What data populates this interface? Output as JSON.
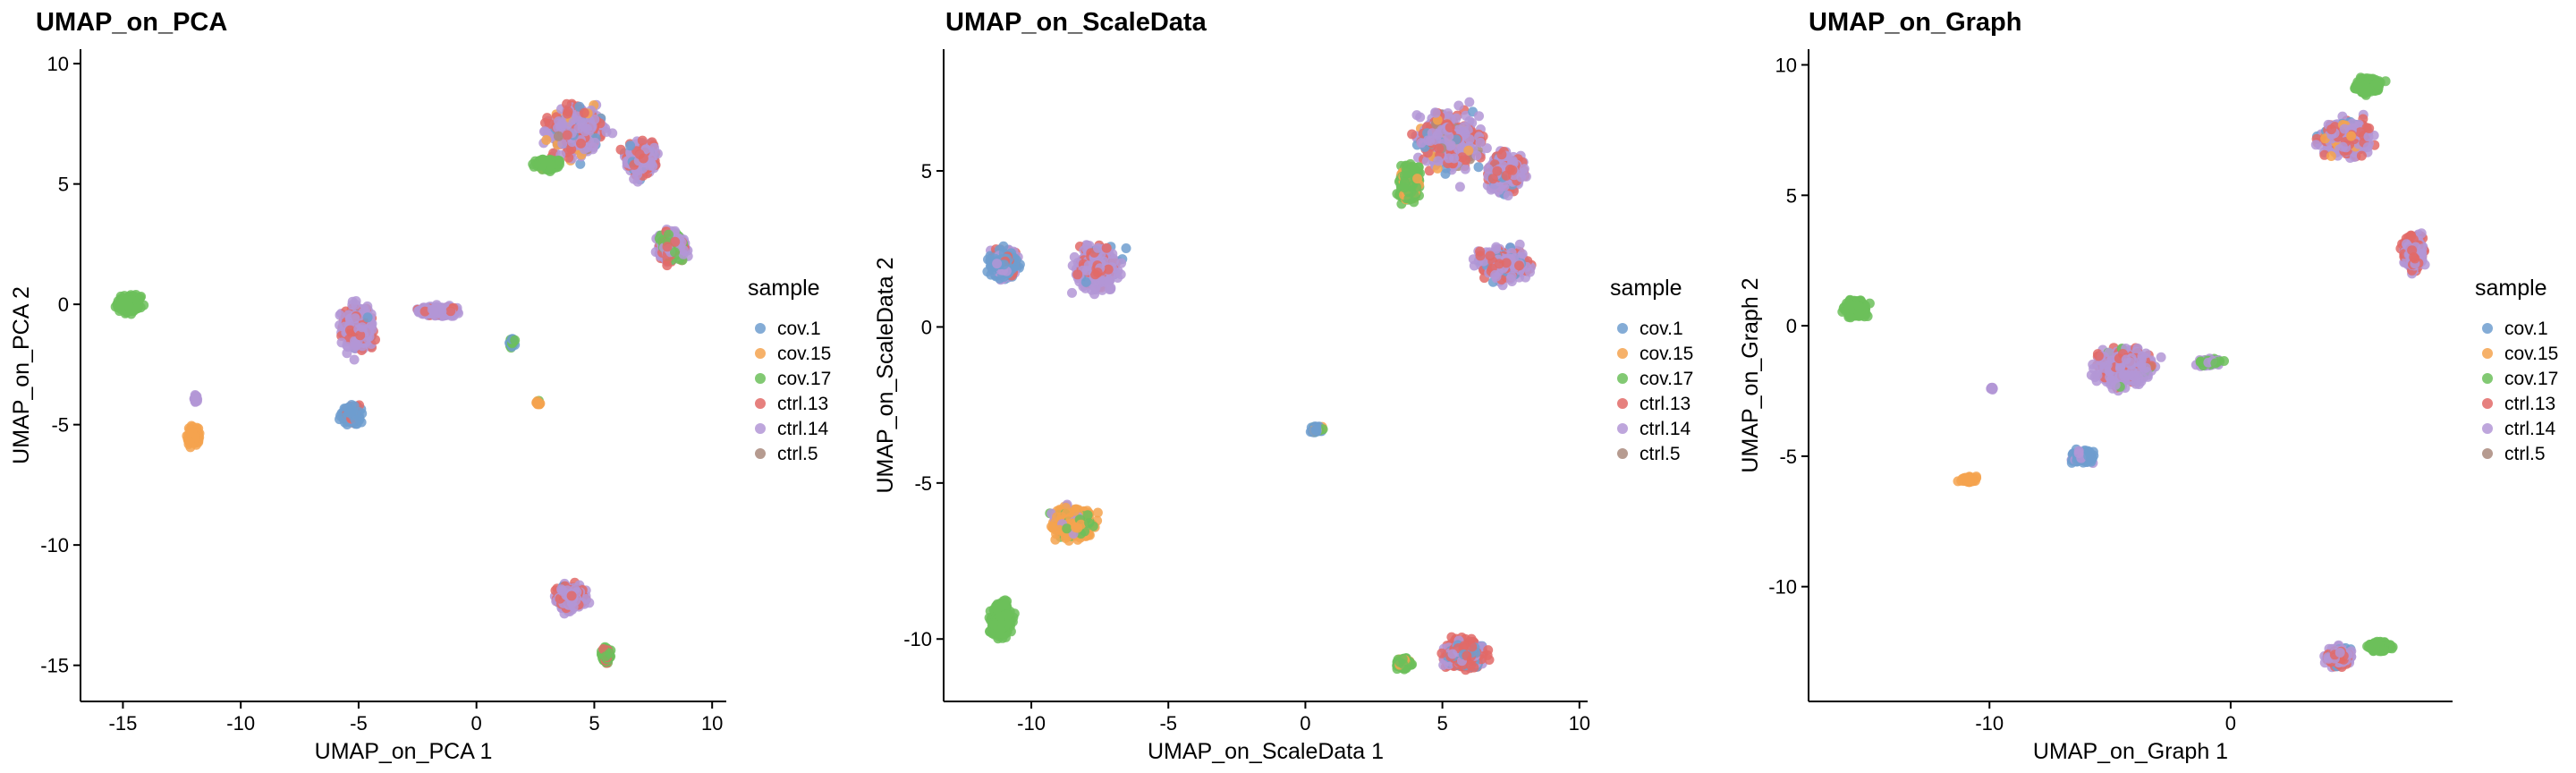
{
  "colors": {
    "cov.1": "#6f9ecf",
    "cov.15": "#f4a34f",
    "cov.17": "#6cc05a",
    "ctrl.13": "#e26a67",
    "ctrl.14": "#b396d6",
    "ctrl.5": "#a98a7d"
  },
  "chart_data": [
    {
      "type": "scatter",
      "title": "UMAP_on_PCA",
      "xlabel": "UMAP_on_PCA 1",
      "ylabel": "UMAP_on_PCA 2",
      "xlim": [
        -16.8,
        10.6
      ],
      "ylim": [
        -16.5,
        10.6
      ],
      "xticks": [
        -15,
        -10,
        -5,
        0,
        5,
        10
      ],
      "yticks": [
        -15,
        -10,
        -5,
        0,
        5,
        10
      ],
      "legend_title": "sample",
      "legend_position": "right",
      "series": [
        "cov.1",
        "cov.15",
        "cov.17",
        "ctrl.13",
        "ctrl.14",
        "ctrl.5"
      ],
      "clusters": [
        {
          "x": 4.2,
          "y": 7.2,
          "rx": 2.2,
          "ry": 2.0,
          "sample": "ctrl.14",
          "mix": {
            "ctrl.14": 0.55,
            "ctrl.13": 0.25,
            "cov.15": 0.08,
            "cov.1": 0.07,
            "ctrl.5": 0.05
          }
        },
        {
          "x": 7.0,
          "y": 6.0,
          "rx": 1.2,
          "ry": 1.3,
          "sample": "ctrl.14",
          "mix": {
            "ctrl.14": 0.6,
            "ctrl.13": 0.3,
            "cov.1": 0.1
          }
        },
        {
          "x": 8.3,
          "y": 2.4,
          "rx": 1.1,
          "ry": 1.2,
          "sample": "ctrl.14",
          "mix": {
            "ctrl.14": 0.55,
            "ctrl.13": 0.35,
            "cov.17": 0.1
          }
        },
        {
          "x": 3.0,
          "y": 5.8,
          "rx": 0.9,
          "ry": 0.45,
          "sample": "cov.17",
          "mix": {
            "cov.17": 0.9,
            "cov.15": 0.1
          }
        },
        {
          "x": -14.7,
          "y": 0.0,
          "rx": 1.0,
          "ry": 0.65,
          "sample": "cov.17",
          "mix": {
            "cov.17": 1.0
          }
        },
        {
          "x": -12.0,
          "y": -5.5,
          "rx": 0.45,
          "ry": 0.75,
          "sample": "cov.15",
          "mix": {
            "cov.15": 1.0
          }
        },
        {
          "x": -11.9,
          "y": -3.9,
          "rx": 0.15,
          "ry": 0.35,
          "sample": "ctrl.14",
          "mix": {
            "ctrl.14": 1.0
          }
        },
        {
          "x": -5.0,
          "y": -1.0,
          "rx": 1.3,
          "ry": 1.8,
          "sample": "ctrl.14",
          "mix": {
            "ctrl.14": 0.7,
            "ctrl.13": 0.25,
            "cov.1": 0.05
          }
        },
        {
          "x": -1.6,
          "y": -0.3,
          "rx": 1.7,
          "ry": 0.4,
          "sample": "ctrl.14",
          "mix": {
            "ctrl.14": 0.85,
            "ctrl.13": 0.15
          }
        },
        {
          "x": -5.3,
          "y": -4.6,
          "rx": 0.75,
          "ry": 0.7,
          "sample": "cov.1",
          "mix": {
            "cov.1": 0.85,
            "ctrl.13": 0.1,
            "ctrl.14": 0.05
          }
        },
        {
          "x": 1.5,
          "y": -1.6,
          "rx": 0.25,
          "ry": 0.4,
          "sample": "cov.1",
          "mix": {
            "cov.1": 0.5,
            "cov.17": 0.5
          }
        },
        {
          "x": 2.6,
          "y": -4.1,
          "rx": 0.2,
          "ry": 0.25,
          "sample": "cov.15",
          "mix": {
            "cov.15": 0.6,
            "cov.17": 0.4
          }
        },
        {
          "x": 4.0,
          "y": -12.2,
          "rx": 1.2,
          "ry": 0.95,
          "sample": "ctrl.14",
          "mix": {
            "ctrl.14": 0.6,
            "ctrl.13": 0.35,
            "cov.1": 0.05
          }
        },
        {
          "x": 5.5,
          "y": -14.6,
          "rx": 0.4,
          "ry": 0.6,
          "sample": "cov.17",
          "mix": {
            "cov.17": 0.8,
            "ctrl.13": 0.2
          }
        }
      ]
    },
    {
      "type": "scatter",
      "title": "UMAP_on_ScaleData",
      "xlabel": "UMAP_on_ScaleData 1",
      "ylabel": "UMAP_on_ScaleData 2",
      "xlim": [
        -13.2,
        10.3
      ],
      "ylim": [
        -12.0,
        8.9
      ],
      "xticks": [
        -10,
        -5,
        0,
        5,
        10
      ],
      "yticks": [
        -10,
        -5,
        0,
        5
      ],
      "legend_title": "sample",
      "legend_position": "right",
      "series": [
        "cov.1",
        "cov.15",
        "cov.17",
        "ctrl.13",
        "ctrl.14",
        "ctrl.5"
      ],
      "clusters": [
        {
          "x": 5.2,
          "y": 5.9,
          "rx": 2.3,
          "ry": 1.8,
          "sample": "ctrl.14",
          "mix": {
            "ctrl.14": 0.55,
            "ctrl.13": 0.25,
            "cov.15": 0.08,
            "cov.1": 0.07,
            "ctrl.5": 0.05
          }
        },
        {
          "x": 7.3,
          "y": 4.9,
          "rx": 1.2,
          "ry": 1.2,
          "sample": "ctrl.14",
          "mix": {
            "ctrl.14": 0.6,
            "ctrl.13": 0.3,
            "cov.1": 0.1
          }
        },
        {
          "x": 7.2,
          "y": 2.0,
          "rx": 1.8,
          "ry": 0.9,
          "sample": "ctrl.14",
          "mix": {
            "ctrl.14": 0.6,
            "ctrl.13": 0.3,
            "cov.1": 0.1
          }
        },
        {
          "x": 3.8,
          "y": 4.6,
          "rx": 0.7,
          "ry": 1.1,
          "sample": "cov.17",
          "mix": {
            "cov.17": 0.85,
            "cov.15": 0.15
          }
        },
        {
          "x": -11.0,
          "y": 2.0,
          "rx": 1.0,
          "ry": 0.8,
          "sample": "cov.1",
          "mix": {
            "cov.1": 0.8,
            "ctrl.13": 0.1,
            "ctrl.14": 0.1
          }
        },
        {
          "x": -7.6,
          "y": 1.9,
          "rx": 1.6,
          "ry": 1.4,
          "sample": "ctrl.14",
          "mix": {
            "ctrl.14": 0.7,
            "ctrl.13": 0.25,
            "cov.1": 0.05
          }
        },
        {
          "x": -8.5,
          "y": -6.3,
          "rx": 1.4,
          "ry": 0.9,
          "sample": "cov.15",
          "mix": {
            "cov.15": 0.7,
            "cov.17": 0.2,
            "ctrl.14": 0.1
          }
        },
        {
          "x": -11.1,
          "y": -9.4,
          "rx": 0.7,
          "ry": 1.0,
          "sample": "cov.17",
          "mix": {
            "cov.17": 1.0
          }
        },
        {
          "x": 0.4,
          "y": -3.3,
          "rx": 0.45,
          "ry": 0.2,
          "sample": "cov.1",
          "mix": {
            "cov.1": 0.5,
            "cov.15": 0.3,
            "cov.17": 0.2
          }
        },
        {
          "x": 5.8,
          "y": -10.5,
          "rx": 1.4,
          "ry": 0.9,
          "sample": "ctrl.13",
          "mix": {
            "ctrl.13": 0.55,
            "ctrl.14": 0.3,
            "cov.1": 0.15
          }
        },
        {
          "x": 3.6,
          "y": -10.8,
          "rx": 0.5,
          "ry": 0.35,
          "sample": "cov.17",
          "mix": {
            "cov.17": 0.8,
            "cov.15": 0.2
          }
        }
      ]
    },
    {
      "type": "scatter",
      "title": "UMAP_on_Graph",
      "xlabel": "UMAP_on_Graph 1",
      "ylabel": "UMAP_on_Graph 2",
      "xlim": [
        -17.5,
        9.2
      ],
      "ylim": [
        -14.4,
        10.6
      ],
      "xticks": [
        -10,
        0
      ],
      "yticks": [
        -10,
        -5,
        0,
        5,
        10
      ],
      "legend_title": "sample",
      "legend_position": "right",
      "series": [
        "cov.1",
        "cov.15",
        "cov.17",
        "ctrl.13",
        "ctrl.14",
        "ctrl.5"
      ],
      "clusters": [
        {
          "x": 4.8,
          "y": 7.2,
          "rx": 2.0,
          "ry": 1.3,
          "sample": "ctrl.14",
          "mix": {
            "ctrl.14": 0.55,
            "ctrl.13": 0.3,
            "cov.15": 0.1,
            "cov.1": 0.05
          }
        },
        {
          "x": 5.7,
          "y": 9.2,
          "rx": 1.0,
          "ry": 0.55,
          "sample": "cov.17",
          "mix": {
            "cov.17": 1.0
          }
        },
        {
          "x": 7.6,
          "y": 2.8,
          "rx": 0.8,
          "ry": 1.3,
          "sample": "ctrl.14",
          "mix": {
            "ctrl.14": 0.6,
            "ctrl.13": 0.4
          }
        },
        {
          "x": -15.5,
          "y": 0.7,
          "rx": 0.9,
          "ry": 0.65,
          "sample": "cov.17",
          "mix": {
            "cov.17": 1.0
          }
        },
        {
          "x": -4.4,
          "y": -1.6,
          "rx": 2.2,
          "ry": 1.4,
          "sample": "ctrl.14",
          "mix": {
            "ctrl.14": 0.75,
            "ctrl.13": 0.2,
            "cov.17": 0.05
          }
        },
        {
          "x": -0.9,
          "y": -1.4,
          "rx": 0.8,
          "ry": 0.3,
          "sample": "ctrl.14",
          "mix": {
            "ctrl.14": 0.6,
            "cov.17": 0.4
          }
        },
        {
          "x": -6.1,
          "y": -5.0,
          "rx": 0.9,
          "ry": 0.45,
          "sample": "cov.1",
          "mix": {
            "cov.1": 0.85,
            "ctrl.14": 0.15
          }
        },
        {
          "x": -10.8,
          "y": -5.9,
          "rx": 0.7,
          "ry": 0.25,
          "sample": "cov.15",
          "mix": {
            "cov.15": 1.0
          }
        },
        {
          "x": -9.9,
          "y": -2.4,
          "rx": 0.1,
          "ry": 0.1,
          "sample": "ctrl.14",
          "mix": {
            "ctrl.14": 1.0
          }
        },
        {
          "x": 4.5,
          "y": -12.7,
          "rx": 1.0,
          "ry": 0.7,
          "sample": "ctrl.14",
          "mix": {
            "ctrl.14": 0.55,
            "ctrl.13": 0.3,
            "cov.1": 0.15
          }
        },
        {
          "x": 6.2,
          "y": -12.3,
          "rx": 0.9,
          "ry": 0.35,
          "sample": "cov.17",
          "mix": {
            "cov.17": 1.0
          }
        }
      ]
    }
  ]
}
